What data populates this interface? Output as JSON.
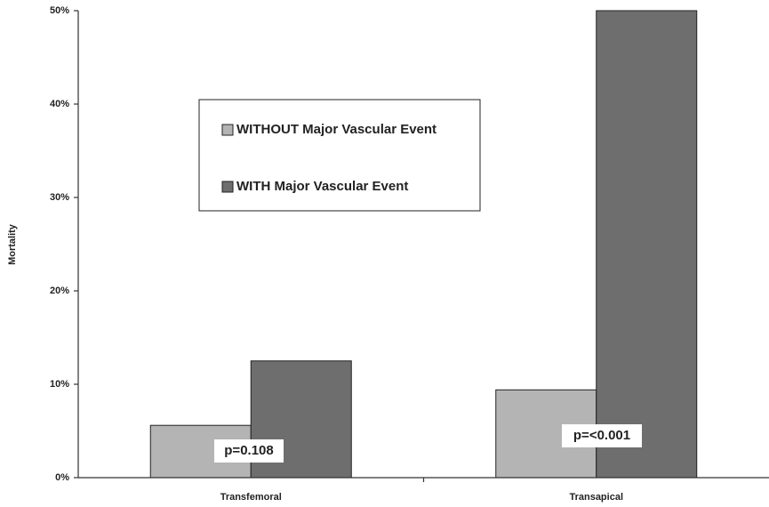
{
  "chart_data": {
    "type": "bar",
    "y_label": "Mortality",
    "categories": [
      "Transfemoral",
      "Transapical"
    ],
    "series": [
      {
        "name": "WITHOUT Major Vascular Event",
        "color": "#b4b4b4",
        "values": [
          5.6,
          9.4
        ]
      },
      {
        "name": "WITH Major Vascular Event",
        "color": "#6e6e6e",
        "values": [
          12.5,
          50
        ]
      }
    ],
    "annotations": [
      "p=0.108",
      "p=<0.001"
    ],
    "ylim": [
      0,
      50
    ],
    "yticks": [
      {
        "value": 0,
        "label": "0%"
      },
      {
        "value": 10,
        "label": "10%"
      },
      {
        "value": 20,
        "label": "20%"
      },
      {
        "value": 30,
        "label": "30%"
      },
      {
        "value": 40,
        "label": "40%"
      },
      {
        "value": 50,
        "label": "50%"
      }
    ],
    "grid": false
  }
}
